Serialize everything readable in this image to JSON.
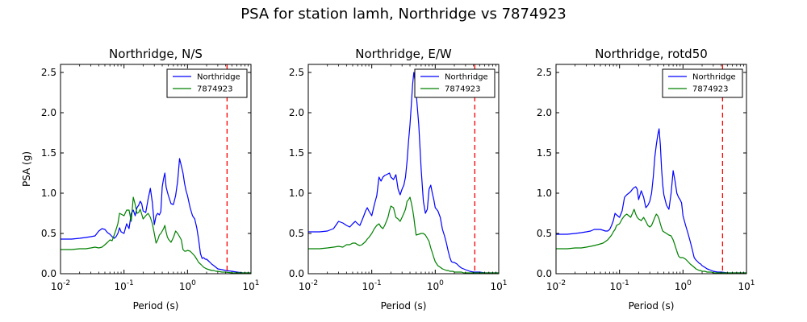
{
  "figure": {
    "title": "PSA for station lamh, Northridge vs 7874923"
  },
  "colors": {
    "Northridge": "#0000ff",
    "7874923": "#008000",
    "marker_line": "#ff0000",
    "axes": "#000000",
    "background": "#ffffff"
  },
  "chart_data": [
    {
      "type": "line",
      "title": "Northridge, N/S",
      "xlabel": "Period (s)",
      "ylabel": "PSA (g)",
      "xscale": "log",
      "xlim": [
        0.01,
        10
      ],
      "ylim": [
        0,
        2.6
      ],
      "xticks": [
        {
          "base": "10",
          "exp": "-2"
        },
        {
          "base": "10",
          "exp": "-1"
        },
        {
          "base": "10",
          "exp": "0"
        },
        {
          "base": "10",
          "exp": "1"
        }
      ],
      "yticks": [
        "0.0",
        "0.5",
        "1.0",
        "1.5",
        "2.0",
        "2.5"
      ],
      "legend": "top-right",
      "grid": false,
      "vline": {
        "x": 4.2,
        "style": "dashed",
        "color": "red"
      },
      "series": [
        {
          "name": "Northridge",
          "x": [
            0.01,
            0.015,
            0.02,
            0.025,
            0.03,
            0.035,
            0.04,
            0.045,
            0.05,
            0.055,
            0.06,
            0.065,
            0.07,
            0.075,
            0.08,
            0.085,
            0.09,
            0.1,
            0.11,
            0.12,
            0.13,
            0.14,
            0.15,
            0.16,
            0.17,
            0.18,
            0.19,
            0.2,
            0.22,
            0.24,
            0.26,
            0.28,
            0.3,
            0.32,
            0.34,
            0.36,
            0.38,
            0.4,
            0.42,
            0.44,
            0.46,
            0.48,
            0.5,
            0.55,
            0.6,
            0.65,
            0.7,
            0.75,
            0.8,
            0.85,
            0.9,
            0.95,
            1.0,
            1.1,
            1.2,
            1.3,
            1.4,
            1.5,
            1.6,
            1.7,
            1.8,
            1.9,
            2.0,
            2.2,
            2.4,
            2.6,
            2.8,
            3.0,
            3.5,
            4.0,
            5.0,
            6.0,
            7.5,
            10.0
          ],
          "values": [
            0.43,
            0.43,
            0.44,
            0.45,
            0.46,
            0.47,
            0.53,
            0.56,
            0.55,
            0.51,
            0.49,
            0.46,
            0.44,
            0.46,
            0.5,
            0.57,
            0.52,
            0.5,
            0.62,
            0.56,
            0.75,
            0.79,
            0.72,
            0.82,
            0.85,
            0.9,
            0.87,
            0.78,
            0.76,
            0.93,
            1.06,
            0.88,
            0.61,
            0.72,
            0.75,
            0.73,
            0.77,
            1.08,
            1.18,
            1.25,
            1.08,
            1.02,
            0.97,
            0.87,
            0.86,
            0.97,
            1.15,
            1.43,
            1.34,
            1.25,
            1.12,
            1.03,
            0.97,
            0.82,
            0.72,
            0.68,
            0.57,
            0.42,
            0.25,
            0.19,
            0.2,
            0.18,
            0.18,
            0.15,
            0.12,
            0.1,
            0.08,
            0.06,
            0.05,
            0.04,
            0.03,
            0.02,
            0.01,
            0.01
          ]
        },
        {
          "name": "7874923",
          "x": [
            0.01,
            0.015,
            0.02,
            0.025,
            0.03,
            0.035,
            0.04,
            0.045,
            0.05,
            0.055,
            0.06,
            0.065,
            0.07,
            0.075,
            0.08,
            0.085,
            0.09,
            0.1,
            0.11,
            0.12,
            0.13,
            0.14,
            0.15,
            0.16,
            0.17,
            0.18,
            0.19,
            0.2,
            0.22,
            0.24,
            0.26,
            0.28,
            0.3,
            0.32,
            0.34,
            0.36,
            0.38,
            0.4,
            0.42,
            0.44,
            0.46,
            0.48,
            0.5,
            0.55,
            0.6,
            0.65,
            0.7,
            0.75,
            0.8,
            0.85,
            0.9,
            0.95,
            1.0,
            1.1,
            1.2,
            1.3,
            1.4,
            1.5,
            1.6,
            1.7,
            1.8,
            1.9,
            2.0,
            2.2,
            2.4,
            2.6,
            2.8,
            3.0,
            3.5,
            4.0,
            5.0,
            6.0,
            7.5,
            10.0
          ],
          "values": [
            0.3,
            0.3,
            0.31,
            0.31,
            0.32,
            0.33,
            0.32,
            0.33,
            0.36,
            0.39,
            0.42,
            0.41,
            0.48,
            0.55,
            0.62,
            0.75,
            0.74,
            0.72,
            0.79,
            0.79,
            0.65,
            0.95,
            0.86,
            0.75,
            0.76,
            0.8,
            0.74,
            0.68,
            0.72,
            0.75,
            0.7,
            0.62,
            0.5,
            0.38,
            0.42,
            0.48,
            0.5,
            0.53,
            0.56,
            0.6,
            0.52,
            0.46,
            0.43,
            0.39,
            0.45,
            0.53,
            0.5,
            0.46,
            0.42,
            0.3,
            0.28,
            0.28,
            0.29,
            0.28,
            0.25,
            0.22,
            0.18,
            0.14,
            0.12,
            0.1,
            0.08,
            0.07,
            0.06,
            0.05,
            0.04,
            0.04,
            0.03,
            0.03,
            0.02,
            0.02,
            0.01,
            0.01,
            0.01,
            0.01
          ]
        }
      ]
    },
    {
      "type": "line",
      "title": "Northridge, E/W",
      "xlabel": "Period (s)",
      "ylabel": "",
      "xscale": "log",
      "xlim": [
        0.01,
        10
      ],
      "ylim": [
        0,
        2.6
      ],
      "xticks": [
        {
          "base": "10",
          "exp": "-2"
        },
        {
          "base": "10",
          "exp": "-1"
        },
        {
          "base": "10",
          "exp": "0"
        },
        {
          "base": "10",
          "exp": "1"
        }
      ],
      "yticks": [
        "0.0",
        "0.5",
        "1.0",
        "1.5",
        "2.0",
        "2.5"
      ],
      "legend": "top-right",
      "grid": false,
      "vline": {
        "x": 4.2,
        "style": "dashed",
        "color": "red"
      },
      "series": [
        {
          "name": "Northridge",
          "x": [
            0.01,
            0.015,
            0.02,
            0.025,
            0.03,
            0.035,
            0.04,
            0.045,
            0.05,
            0.055,
            0.06,
            0.065,
            0.07,
            0.075,
            0.08,
            0.085,
            0.09,
            0.1,
            0.11,
            0.12,
            0.13,
            0.14,
            0.15,
            0.16,
            0.17,
            0.18,
            0.19,
            0.2,
            0.22,
            0.24,
            0.26,
            0.28,
            0.3,
            0.32,
            0.34,
            0.36,
            0.38,
            0.4,
            0.42,
            0.44,
            0.46,
            0.48,
            0.5,
            0.55,
            0.6,
            0.65,
            0.7,
            0.75,
            0.8,
            0.85,
            0.9,
            0.95,
            1.0,
            1.1,
            1.2,
            1.3,
            1.4,
            1.5,
            1.6,
            1.7,
            1.8,
            1.9,
            2.0,
            2.2,
            2.4,
            2.6,
            2.8,
            3.0,
            3.5,
            4.0,
            5.0,
            6.0,
            7.5,
            10.0
          ],
          "values": [
            0.52,
            0.52,
            0.53,
            0.56,
            0.65,
            0.63,
            0.6,
            0.58,
            0.62,
            0.65,
            0.62,
            0.6,
            0.66,
            0.72,
            0.78,
            0.82,
            0.78,
            0.72,
            0.86,
            0.97,
            1.2,
            1.15,
            1.2,
            1.22,
            1.23,
            1.24,
            1.25,
            1.2,
            1.17,
            1.23,
            1.05,
            0.98,
            1.05,
            1.1,
            1.2,
            1.4,
            1.65,
            1.85,
            2.1,
            2.35,
            2.5,
            2.4,
            2.25,
            1.85,
            1.3,
            0.9,
            0.75,
            0.8,
            1.05,
            1.1,
            1.0,
            0.92,
            0.82,
            0.78,
            0.7,
            0.55,
            0.47,
            0.38,
            0.28,
            0.2,
            0.15,
            0.14,
            0.14,
            0.12,
            0.09,
            0.07,
            0.06,
            0.05,
            0.03,
            0.02,
            0.02,
            0.01,
            0.01,
            0.01
          ]
        },
        {
          "name": "7874923",
          "x": [
            0.01,
            0.015,
            0.02,
            0.025,
            0.03,
            0.035,
            0.04,
            0.045,
            0.05,
            0.055,
            0.06,
            0.065,
            0.07,
            0.075,
            0.08,
            0.085,
            0.09,
            0.1,
            0.11,
            0.12,
            0.13,
            0.14,
            0.15,
            0.16,
            0.17,
            0.18,
            0.19,
            0.2,
            0.22,
            0.24,
            0.26,
            0.28,
            0.3,
            0.32,
            0.34,
            0.36,
            0.38,
            0.4,
            0.42,
            0.44,
            0.46,
            0.48,
            0.5,
            0.55,
            0.6,
            0.65,
            0.7,
            0.75,
            0.8,
            0.85,
            0.9,
            0.95,
            1.0,
            1.1,
            1.2,
            1.3,
            1.4,
            1.5,
            1.6,
            1.7,
            1.8,
            1.9,
            2.0,
            2.2,
            2.4,
            2.6,
            2.8,
            3.0,
            3.5,
            4.0,
            5.0,
            6.0,
            7.5,
            10.0
          ],
          "values": [
            0.31,
            0.31,
            0.32,
            0.33,
            0.34,
            0.33,
            0.36,
            0.36,
            0.38,
            0.38,
            0.36,
            0.35,
            0.36,
            0.38,
            0.4,
            0.43,
            0.45,
            0.5,
            0.56,
            0.6,
            0.62,
            0.58,
            0.56,
            0.6,
            0.65,
            0.7,
            0.78,
            0.84,
            0.82,
            0.7,
            0.68,
            0.65,
            0.7,
            0.75,
            0.8,
            0.9,
            0.92,
            0.95,
            0.88,
            0.8,
            0.7,
            0.58,
            0.48,
            0.49,
            0.5,
            0.5,
            0.48,
            0.44,
            0.4,
            0.32,
            0.26,
            0.2,
            0.15,
            0.1,
            0.08,
            0.06,
            0.05,
            0.04,
            0.04,
            0.03,
            0.03,
            0.03,
            0.02,
            0.02,
            0.02,
            0.02,
            0.01,
            0.01,
            0.01,
            0.01,
            0.01,
            0.01,
            0.01,
            0.01
          ]
        }
      ]
    },
    {
      "type": "line",
      "title": "Northridge, rotd50",
      "xlabel": "Period (s)",
      "ylabel": "",
      "xscale": "log",
      "xlim": [
        0.01,
        10
      ],
      "ylim": [
        0,
        2.6
      ],
      "xticks": [
        {
          "base": "10",
          "exp": "-2"
        },
        {
          "base": "10",
          "exp": "-1"
        },
        {
          "base": "10",
          "exp": "0"
        },
        {
          "base": "10",
          "exp": "1"
        }
      ],
      "yticks": [
        "0.0",
        "0.5",
        "1.0",
        "1.5",
        "2.0",
        "2.5"
      ],
      "legend": "top-right",
      "grid": false,
      "vline": {
        "x": 4.2,
        "style": "dashed",
        "color": "red"
      },
      "series": [
        {
          "name": "Northridge",
          "x": [
            0.01,
            0.015,
            0.02,
            0.025,
            0.03,
            0.035,
            0.04,
            0.045,
            0.05,
            0.055,
            0.06,
            0.065,
            0.07,
            0.075,
            0.08,
            0.085,
            0.09,
            0.1,
            0.11,
            0.12,
            0.13,
            0.14,
            0.15,
            0.16,
            0.17,
            0.18,
            0.19,
            0.2,
            0.22,
            0.24,
            0.26,
            0.28,
            0.3,
            0.32,
            0.34,
            0.36,
            0.38,
            0.4,
            0.42,
            0.44,
            0.46,
            0.48,
            0.5,
            0.55,
            0.6,
            0.65,
            0.7,
            0.75,
            0.8,
            0.85,
            0.9,
            0.95,
            1.0,
            1.1,
            1.2,
            1.3,
            1.4,
            1.5,
            1.6,
            1.7,
            1.8,
            1.9,
            2.0,
            2.2,
            2.4,
            2.6,
            2.8,
            3.0,
            3.5,
            4.0,
            5.0,
            6.0,
            7.5,
            10.0
          ],
          "values": [
            0.49,
            0.49,
            0.5,
            0.51,
            0.52,
            0.53,
            0.55,
            0.55,
            0.55,
            0.54,
            0.53,
            0.53,
            0.55,
            0.6,
            0.66,
            0.75,
            0.73,
            0.7,
            0.78,
            0.95,
            0.98,
            1.0,
            1.02,
            1.05,
            1.07,
            1.08,
            1.05,
            0.92,
            1.03,
            0.95,
            0.82,
            0.85,
            0.9,
            1.0,
            1.2,
            1.45,
            1.6,
            1.72,
            1.8,
            1.6,
            1.3,
            1.1,
            0.98,
            0.85,
            0.8,
            1.0,
            1.28,
            1.15,
            1.0,
            0.95,
            0.92,
            0.88,
            0.72,
            0.6,
            0.5,
            0.4,
            0.3,
            0.2,
            0.17,
            0.15,
            0.13,
            0.12,
            0.1,
            0.08,
            0.06,
            0.05,
            0.04,
            0.03,
            0.02,
            0.02,
            0.01,
            0.01,
            0.01,
            0.01
          ]
        },
        {
          "name": "7874923",
          "x": [
            0.01,
            0.015,
            0.02,
            0.025,
            0.03,
            0.035,
            0.04,
            0.045,
            0.05,
            0.055,
            0.06,
            0.065,
            0.07,
            0.075,
            0.08,
            0.085,
            0.09,
            0.1,
            0.11,
            0.12,
            0.13,
            0.14,
            0.15,
            0.16,
            0.17,
            0.18,
            0.19,
            0.2,
            0.22,
            0.24,
            0.26,
            0.28,
            0.3,
            0.32,
            0.34,
            0.36,
            0.38,
            0.4,
            0.42,
            0.44,
            0.46,
            0.48,
            0.5,
            0.55,
            0.6,
            0.65,
            0.7,
            0.75,
            0.8,
            0.85,
            0.9,
            0.95,
            1.0,
            1.1,
            1.2,
            1.3,
            1.4,
            1.5,
            1.6,
            1.7,
            1.8,
            1.9,
            2.0,
            2.2,
            2.4,
            2.6,
            2.8,
            3.0,
            3.5,
            4.0,
            5.0,
            6.0,
            7.5,
            10.0
          ],
          "values": [
            0.31,
            0.31,
            0.32,
            0.32,
            0.33,
            0.34,
            0.35,
            0.36,
            0.37,
            0.38,
            0.4,
            0.42,
            0.45,
            0.48,
            0.52,
            0.55,
            0.6,
            0.62,
            0.68,
            0.72,
            0.74,
            0.72,
            0.7,
            0.75,
            0.8,
            0.74,
            0.7,
            0.68,
            0.66,
            0.7,
            0.65,
            0.6,
            0.58,
            0.6,
            0.65,
            0.7,
            0.74,
            0.72,
            0.68,
            0.62,
            0.57,
            0.53,
            0.52,
            0.5,
            0.48,
            0.47,
            0.42,
            0.35,
            0.28,
            0.22,
            0.2,
            0.2,
            0.2,
            0.18,
            0.15,
            0.12,
            0.1,
            0.08,
            0.06,
            0.05,
            0.04,
            0.04,
            0.03,
            0.03,
            0.02,
            0.02,
            0.02,
            0.01,
            0.01,
            0.01,
            0.01,
            0.01,
            0.01,
            0.01
          ]
        }
      ]
    }
  ]
}
